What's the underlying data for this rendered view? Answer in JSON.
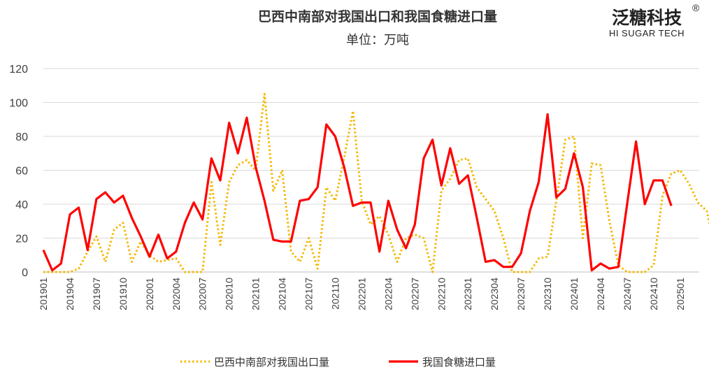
{
  "logo": {
    "name_cn": "泛糖科技",
    "name_en": "HI SUGAR TECH",
    "registered": "®"
  },
  "chart_data": {
    "type": "line",
    "title": "巴西中南部对我国出口和我国食糖进口量",
    "unit": "单位：万吨",
    "ylim": [
      0,
      120
    ],
    "yticks": [
      0,
      20,
      40,
      60,
      80,
      100,
      120
    ],
    "xtick_labels": [
      "201901",
      "201904",
      "201907",
      "201910",
      "202001",
      "202004",
      "202007",
      "202010",
      "202101",
      "202104",
      "202107",
      "202110",
      "202201",
      "202204",
      "202207",
      "202210",
      "202301",
      "202304",
      "202307",
      "202310",
      "202401",
      "202404",
      "202407",
      "202410",
      "202501"
    ],
    "x_start": "201901",
    "grid": true,
    "legend_position": "bottom",
    "series": [
      {
        "name": "巴西中南部对我国出口量",
        "color": "#F5B800",
        "style": "dotted",
        "values": [
          0,
          0,
          0,
          0,
          2,
          12,
          21,
          6,
          25,
          29,
          6,
          18,
          10,
          6,
          7,
          8,
          0,
          0,
          0,
          53,
          16,
          53,
          63,
          66,
          60,
          105,
          48,
          60,
          12,
          6,
          20,
          2,
          50,
          42,
          67,
          95,
          42,
          28,
          33,
          22,
          6,
          20,
          22,
          20,
          0,
          48,
          55,
          66,
          67,
          50,
          43,
          36,
          20,
          0,
          0,
          0,
          8,
          9,
          42,
          78,
          80,
          20,
          64,
          63,
          30,
          4,
          0,
          0,
          0,
          4,
          45,
          58,
          60,
          52,
          41,
          36,
          12,
          6
        ]
      },
      {
        "name": "我国食糖进口量",
        "color": "#FF0000",
        "style": "solid",
        "values": [
          13,
          1,
          5,
          34,
          38,
          13,
          43,
          47,
          41,
          45,
          32,
          21,
          9,
          22,
          8,
          12,
          29,
          41,
          31,
          67,
          54,
          88,
          70,
          91,
          62,
          42,
          19,
          18,
          18,
          42,
          43,
          50,
          87,
          80,
          62,
          39,
          41,
          41,
          12,
          42,
          25,
          14,
          28,
          67,
          78,
          51,
          73,
          52,
          57,
          32,
          6,
          7,
          3,
          3,
          11,
          36,
          53,
          93,
          44,
          49,
          70,
          50,
          1,
          5,
          2,
          3,
          40,
          77,
          40,
          54,
          54,
          39
        ]
      }
    ]
  }
}
